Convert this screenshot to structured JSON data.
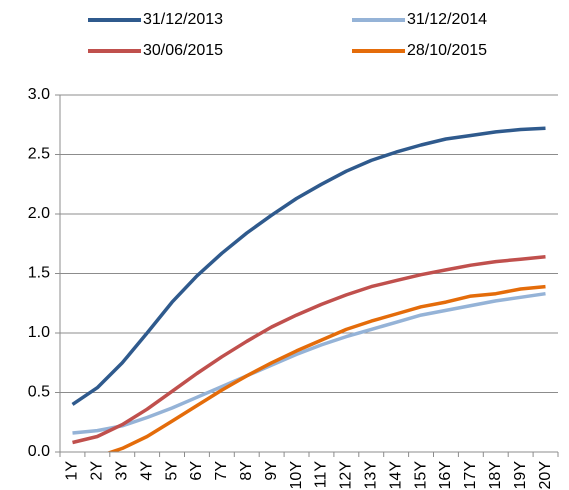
{
  "chart_data": {
    "type": "line",
    "categories": [
      "1Y",
      "2Y",
      "3Y",
      "4Y",
      "5Y",
      "6Y",
      "7Y",
      "8Y",
      "9Y",
      "10Y",
      "11Y",
      "12Y",
      "13Y",
      "14Y",
      "15Y",
      "16Y",
      "17Y",
      "18Y",
      "19Y",
      "20Y"
    ],
    "series": [
      {
        "name": "31/12/2013",
        "color": "#2f5a8d",
        "values": [
          0.4,
          0.54,
          0.75,
          1.0,
          1.26,
          1.48,
          1.67,
          1.84,
          1.99,
          2.13,
          2.25,
          2.36,
          2.45,
          2.52,
          2.58,
          2.63,
          2.66,
          2.69,
          2.71,
          2.72
        ]
      },
      {
        "name": "31/12/2014",
        "color": "#95b3d7",
        "values": [
          0.16,
          0.18,
          0.22,
          0.29,
          0.37,
          0.46,
          0.55,
          0.64,
          0.73,
          0.82,
          0.9,
          0.97,
          1.03,
          1.09,
          1.15,
          1.19,
          1.23,
          1.27,
          1.3,
          1.33
        ]
      },
      {
        "name": "30/06/2015",
        "color": "#c0504d",
        "values": [
          0.08,
          0.13,
          0.23,
          0.36,
          0.51,
          0.66,
          0.8,
          0.93,
          1.05,
          1.15,
          1.24,
          1.32,
          1.39,
          1.44,
          1.49,
          1.53,
          1.57,
          1.6,
          1.62,
          1.64
        ]
      },
      {
        "name": "28/10/2015",
        "color": "#e46c0a",
        "values": [
          -0.05,
          -0.04,
          0.03,
          0.13,
          0.26,
          0.39,
          0.52,
          0.64,
          0.75,
          0.85,
          0.94,
          1.03,
          1.1,
          1.16,
          1.22,
          1.26,
          1.31,
          1.33,
          1.37,
          1.39
        ]
      }
    ],
    "ylim": [
      0,
      3
    ],
    "yticks": [
      {
        "value": 0,
        "label": "0.0"
      },
      0.5,
      {
        "value": 1,
        "label": "1.0"
      },
      1.5,
      {
        "value": 2,
        "label": "2.0"
      },
      2.5,
      {
        "value": 3,
        "label": "3.0"
      }
    ],
    "grid": true
  }
}
